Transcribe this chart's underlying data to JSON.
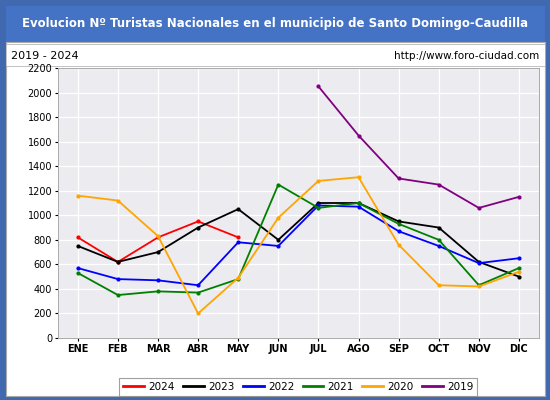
{
  "title": "Evolucion Nº Turistas Nacionales en el municipio de Santo Domingo-Caudilla",
  "subtitle_left": "2019 - 2024",
  "subtitle_right": "http://www.foro-ciudad.com",
  "title_bg": "#4472c4",
  "months": [
    "ENE",
    "FEB",
    "MAR",
    "ABR",
    "MAY",
    "JUN",
    "JUL",
    "AGO",
    "SEP",
    "OCT",
    "NOV",
    "DIC"
  ],
  "series": {
    "2024": {
      "color": "red",
      "data": [
        820,
        620,
        820,
        950,
        820,
        null,
        null,
        null,
        null,
        null,
        null,
        null
      ]
    },
    "2023": {
      "color": "black",
      "data": [
        750,
        620,
        700,
        900,
        1050,
        800,
        1100,
        1100,
        950,
        900,
        620,
        500
      ]
    },
    "2022": {
      "color": "blue",
      "data": [
        570,
        480,
        470,
        430,
        780,
        750,
        1080,
        1070,
        870,
        750,
        610,
        650
      ]
    },
    "2021": {
      "color": "green",
      "data": [
        530,
        350,
        380,
        370,
        480,
        1250,
        1060,
        1100,
        930,
        800,
        430,
        570
      ]
    },
    "2020": {
      "color": "orange",
      "data": [
        1160,
        1120,
        830,
        200,
        490,
        980,
        1280,
        1310,
        760,
        430,
        420,
        540
      ]
    },
    "2019": {
      "color": "purple",
      "data": [
        null,
        null,
        null,
        null,
        null,
        null,
        2050,
        1650,
        1300,
        1250,
        1060,
        1150
      ]
    }
  },
  "ylim": [
    0,
    2200
  ],
  "yticks": [
    0,
    200,
    400,
    600,
    800,
    1000,
    1200,
    1400,
    1600,
    1800,
    2000,
    2200
  ],
  "plot_bg": "#ebebf0",
  "grid_color": "white",
  "legend_order": [
    "2024",
    "2023",
    "2022",
    "2021",
    "2020",
    "2019"
  ],
  "outer_bg": "#4169b0"
}
